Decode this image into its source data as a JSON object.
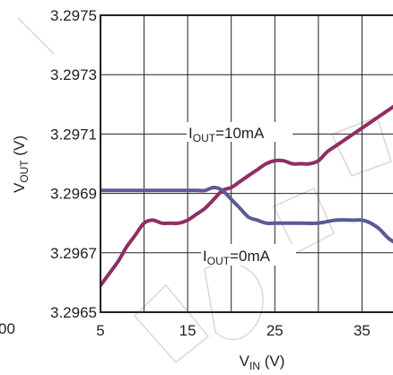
{
  "chart_data": {
    "type": "line",
    "title": "",
    "xlabel": {
      "main": "V",
      "sub": "IN",
      "unit": " (V)"
    },
    "ylabel": {
      "main": "V",
      "sub": "OUT",
      "unit": " (V)"
    },
    "xlim": [
      5,
      40
    ],
    "ylim": [
      3.2965,
      3.2975
    ],
    "x_ticks": [
      5,
      10,
      15,
      20,
      25,
      30,
      35,
      40
    ],
    "x_tick_labels": [
      "5",
      "",
      "15",
      "",
      "25",
      "",
      "35",
      ""
    ],
    "y_ticks": [
      3.2965,
      3.2967,
      3.2969,
      3.2971,
      3.2973,
      3.2975
    ],
    "y_tick_labels": [
      "3.2965",
      "3.2967",
      "3.2969",
      "3.2971",
      "3.2973",
      "3.2975"
    ],
    "left_edge_text": "00",
    "grid": true,
    "series": [
      {
        "name": "IOUT=10mA",
        "label": {
          "main": "I",
          "sub": "OUT",
          "rest": "=10mA"
        },
        "color": "#8e2e62",
        "x": [
          5,
          6,
          7,
          8,
          9,
          10,
          11,
          12,
          13,
          14,
          15,
          16,
          17,
          18,
          19,
          20,
          21,
          22,
          23,
          24,
          25,
          26,
          27,
          28,
          29,
          30,
          31,
          32,
          33,
          34,
          35,
          36,
          37,
          38,
          39,
          40
        ],
        "y": [
          3.29659,
          3.29663,
          3.29667,
          3.29672,
          3.29676,
          3.2968,
          3.29681,
          3.2968,
          3.2968,
          3.2968,
          3.29681,
          3.29683,
          3.29685,
          3.29688,
          3.29691,
          3.29692,
          3.29694,
          3.29696,
          3.29698,
          3.297,
          3.29701,
          3.29701,
          3.297,
          3.297,
          3.297,
          3.29701,
          3.29704,
          3.29706,
          3.29708,
          3.2971,
          3.29712,
          3.29714,
          3.29716,
          3.29718,
          3.2972,
          3.29722
        ]
      },
      {
        "name": "IOUT=0mA",
        "label": {
          "main": "I",
          "sub": "OUT",
          "rest": "=0mA"
        },
        "color": "#5a5b96",
        "x": [
          5,
          6,
          8,
          10,
          12,
          14,
          15,
          16,
          17,
          18,
          19,
          20,
          21,
          22,
          23,
          24,
          25,
          26,
          28,
          30,
          32,
          34,
          35,
          36,
          37,
          38,
          39,
          40
        ],
        "y": [
          3.29691,
          3.29691,
          3.29691,
          3.29691,
          3.29691,
          3.29691,
          3.29691,
          3.29691,
          3.29691,
          3.29692,
          3.29691,
          3.29688,
          3.29685,
          3.29682,
          3.29681,
          3.2968,
          3.2968,
          3.2968,
          3.2968,
          3.2968,
          3.29681,
          3.29681,
          3.29681,
          3.2968,
          3.29678,
          3.29675,
          3.29673,
          3.29671
        ]
      }
    ]
  }
}
